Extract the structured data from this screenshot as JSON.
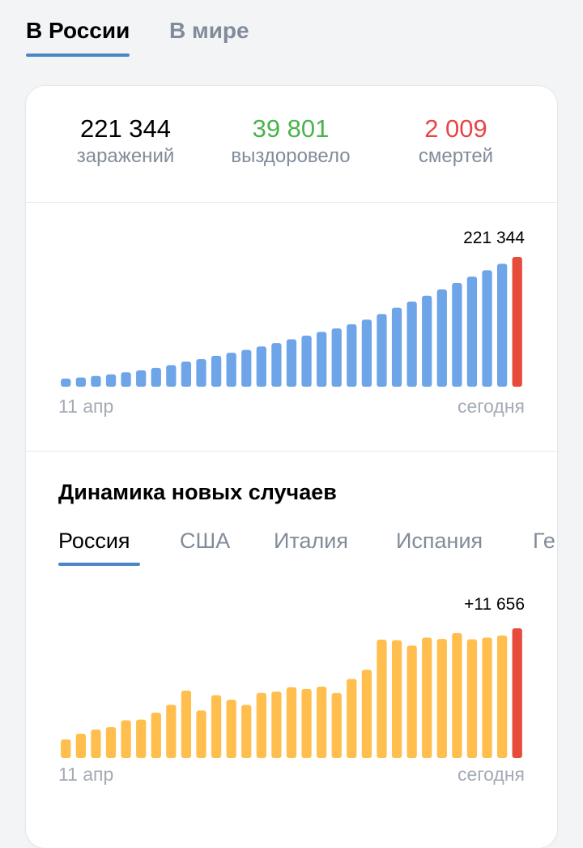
{
  "top_tabs": [
    {
      "label": "В России",
      "active": true
    },
    {
      "label": "В мире",
      "active": false
    }
  ],
  "stats": {
    "infected": {
      "value": "221 344",
      "label": "заражений",
      "color": "#000000"
    },
    "recovered": {
      "value": "39 801",
      "label": "выздоровело",
      "color": "#4bb34b"
    },
    "deaths": {
      "value": "2 009",
      "label": "смертей",
      "color": "#e64646"
    }
  },
  "colors": {
    "accent": "#4a86c5",
    "cumulative_bar": "#6ea4e8",
    "daily_bar": "#ffbe4d",
    "today_bar": "#e64b3b",
    "muted_text": "#818c99"
  },
  "section": {
    "title": "Динамика новых случаев"
  },
  "country_tabs": [
    {
      "label": "Россия",
      "active": true
    },
    {
      "label": "США",
      "active": false
    },
    {
      "label": "Италия",
      "active": false
    },
    {
      "label": "Испания",
      "active": false
    },
    {
      "label": "Ге",
      "active": false
    }
  ],
  "chart_data": [
    {
      "type": "bar",
      "top_label": "221 344",
      "x_start_label": "11 апр",
      "x_end_label": "сегодня",
      "values": [
        13584,
        15770,
        18328,
        21102,
        24490,
        27938,
        32008,
        36793,
        42853,
        47121,
        52763,
        57999,
        62773,
        68622,
        74588,
        80949,
        87147,
        93558,
        99399,
        106498,
        114431,
        124054,
        134686,
        145268,
        155370,
        165929,
        177160,
        187859,
        198676,
        209688,
        221344
      ],
      "ylim": [
        0,
        221344
      ],
      "grid": false
    },
    {
      "type": "bar",
      "top_label": "+11 656",
      "x_start_label": "11 апр",
      "x_end_label": "сегодня",
      "values": [
        1667,
        2186,
        2558,
        2774,
        3388,
        3448,
        4070,
        4785,
        6060,
        4268,
        5642,
        5236,
        4774,
        5849,
        5966,
        6361,
        6198,
        6411,
        5841,
        7099,
        7933,
        10633,
        10581,
        10102,
        10817,
        10699,
        11231,
        10669,
        10817,
        11012,
        11656
      ],
      "ylim": [
        0,
        11656
      ],
      "grid": false
    }
  ]
}
